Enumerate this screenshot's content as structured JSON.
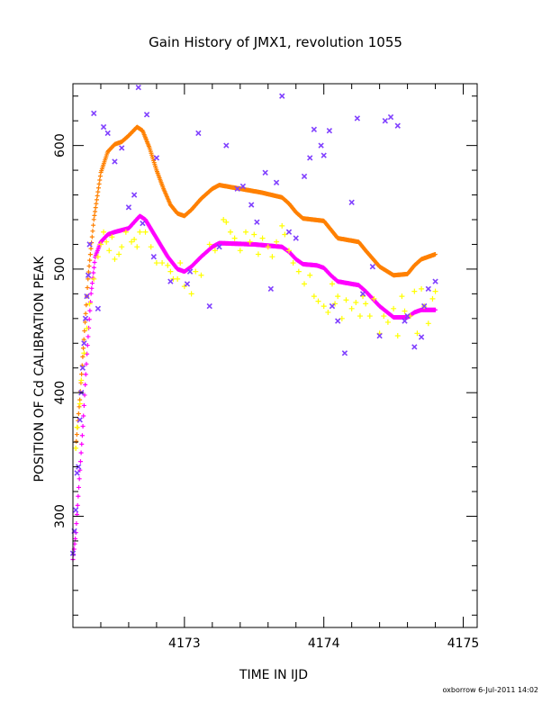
{
  "chart_data": {
    "type": "scatter",
    "title": "Gain History of JMX1, revolution 1055",
    "xlabel": "TIME IN IJD",
    "ylabel": "POSITION OF Cd CALIBRATION PEAK",
    "xlim": [
      4172.2,
      4175.1
    ],
    "ylim": [
      210,
      650
    ],
    "x_ticks": [
      4173,
      4174,
      4175
    ],
    "y_ticks": [
      300,
      400,
      500,
      600
    ],
    "grid": false,
    "footer": "oxborrow  6-Jul-2011 14:02",
    "series": [
      {
        "marker": "curve-plus",
        "color": "#ff8000",
        "knots": [
          [
            4172.22,
            355
          ],
          [
            4172.25,
            395
          ],
          [
            4172.28,
            445
          ],
          [
            4172.31,
            495
          ],
          [
            4172.35,
            540
          ],
          [
            4172.4,
            578
          ],
          [
            4172.45,
            595
          ],
          [
            4172.5,
            601
          ],
          [
            4172.55,
            603
          ],
          [
            4172.6,
            608
          ],
          [
            4172.66,
            615
          ],
          [
            4172.7,
            612
          ],
          [
            4172.75,
            598
          ],
          [
            4172.8,
            580
          ],
          [
            4172.85,
            565
          ],
          [
            4172.9,
            552
          ],
          [
            4172.95,
            545
          ],
          [
            4173.0,
            543
          ],
          [
            4173.05,
            548
          ],
          [
            4173.12,
            557
          ],
          [
            4173.2,
            565
          ],
          [
            4173.25,
            568
          ],
          [
            4173.4,
            565
          ],
          [
            4173.55,
            562
          ],
          [
            4173.7,
            558
          ],
          [
            4173.75,
            553
          ],
          [
            4173.8,
            546
          ],
          [
            4173.85,
            541
          ],
          [
            4174.0,
            539
          ],
          [
            4174.05,
            532
          ],
          [
            4174.1,
            525
          ],
          [
            4174.25,
            522
          ],
          [
            4174.3,
            515
          ],
          [
            4174.4,
            502
          ],
          [
            4174.5,
            495
          ],
          [
            4174.6,
            496
          ],
          [
            4174.65,
            503
          ],
          [
            4174.7,
            508
          ],
          [
            4174.75,
            510
          ],
          [
            4174.8,
            512
          ]
        ]
      },
      {
        "marker": "curve-plus",
        "color": "#ff00ff",
        "knots": [
          [
            4172.2,
            265
          ],
          [
            4172.22,
            285
          ],
          [
            4172.24,
            320
          ],
          [
            4172.27,
            370
          ],
          [
            4172.3,
            430
          ],
          [
            4172.33,
            480
          ],
          [
            4172.36,
            510
          ],
          [
            4172.4,
            522
          ],
          [
            4172.45,
            528
          ],
          [
            4172.5,
            530
          ],
          [
            4172.6,
            533
          ],
          [
            4172.68,
            543
          ],
          [
            4172.72,
            540
          ],
          [
            4172.8,
            525
          ],
          [
            4172.88,
            510
          ],
          [
            4172.95,
            500
          ],
          [
            4173.0,
            498
          ],
          [
            4173.05,
            502
          ],
          [
            4173.12,
            510
          ],
          [
            4173.2,
            518
          ],
          [
            4173.25,
            521
          ],
          [
            4173.5,
            520
          ],
          [
            4173.7,
            518
          ],
          [
            4173.75,
            514
          ],
          [
            4173.8,
            508
          ],
          [
            4173.85,
            504
          ],
          [
            4173.95,
            503
          ],
          [
            4174.0,
            501
          ],
          [
            4174.05,
            495
          ],
          [
            4174.1,
            490
          ],
          [
            4174.25,
            487
          ],
          [
            4174.3,
            482
          ],
          [
            4174.4,
            470
          ],
          [
            4174.5,
            461
          ],
          [
            4174.6,
            461
          ],
          [
            4174.65,
            465
          ],
          [
            4174.7,
            467
          ],
          [
            4174.8,
            467
          ]
        ]
      },
      {
        "marker": "plus",
        "color": "#ffff00",
        "points": [
          [
            4172.22,
            355
          ],
          [
            4172.23,
            372
          ],
          [
            4172.25,
            391
          ],
          [
            4172.26,
            410
          ],
          [
            4172.28,
            432
          ],
          [
            4172.3,
            452
          ],
          [
            4172.32,
            472
          ],
          [
            4172.35,
            492
          ],
          [
            4172.38,
            510
          ],
          [
            4172.4,
            520
          ],
          [
            4172.42,
            530
          ],
          [
            4172.44,
            522
          ],
          [
            4172.46,
            515
          ],
          [
            4172.48,
            526
          ],
          [
            4172.5,
            508
          ],
          [
            4172.53,
            512
          ],
          [
            4172.55,
            518
          ],
          [
            4172.58,
            530
          ],
          [
            4172.62,
            522
          ],
          [
            4172.64,
            524
          ],
          [
            4172.66,
            518
          ],
          [
            4172.68,
            530
          ],
          [
            4172.72,
            530
          ],
          [
            4172.76,
            518
          ],
          [
            4172.8,
            505
          ],
          [
            4172.84,
            505
          ],
          [
            4172.88,
            503
          ],
          [
            4172.9,
            498
          ],
          [
            4172.92,
            492
          ],
          [
            4172.95,
            492
          ],
          [
            4172.97,
            505
          ],
          [
            4173.0,
            486
          ],
          [
            4173.05,
            480
          ],
          [
            4173.08,
            498
          ],
          [
            4173.12,
            495
          ],
          [
            4173.18,
            520
          ],
          [
            4173.22,
            515
          ],
          [
            4173.28,
            540
          ],
          [
            4173.3,
            538
          ],
          [
            4173.33,
            530
          ],
          [
            4173.36,
            525
          ],
          [
            4173.4,
            515
          ],
          [
            4173.44,
            530
          ],
          [
            4173.47,
            522
          ],
          [
            4173.5,
            528
          ],
          [
            4173.53,
            512
          ],
          [
            4173.56,
            525
          ],
          [
            4173.6,
            518
          ],
          [
            4173.63,
            510
          ],
          [
            4173.66,
            522
          ],
          [
            4173.7,
            535
          ],
          [
            4173.72,
            528
          ],
          [
            4173.75,
            515
          ],
          [
            4173.78,
            505
          ],
          [
            4173.82,
            498
          ],
          [
            4173.86,
            488
          ],
          [
            4173.9,
            495
          ],
          [
            4173.93,
            478
          ],
          [
            4173.96,
            474
          ],
          [
            4174.0,
            470
          ],
          [
            4174.03,
            465
          ],
          [
            4174.06,
            488
          ],
          [
            4174.08,
            472
          ],
          [
            4174.1,
            478
          ],
          [
            4174.13,
            460
          ],
          [
            4174.16,
            475
          ],
          [
            4174.2,
            468
          ],
          [
            4174.23,
            473
          ],
          [
            4174.26,
            462
          ],
          [
            4174.28,
            478
          ],
          [
            4174.3,
            472
          ],
          [
            4174.33,
            462
          ],
          [
            4174.36,
            476
          ],
          [
            4174.4,
            448
          ],
          [
            4174.43,
            462
          ],
          [
            4174.46,
            457
          ],
          [
            4174.5,
            468
          ],
          [
            4174.53,
            446
          ],
          [
            4174.56,
            478
          ],
          [
            4174.58,
            466
          ],
          [
            4174.62,
            462
          ],
          [
            4174.65,
            482
          ],
          [
            4174.67,
            448
          ],
          [
            4174.7,
            484
          ],
          [
            4174.72,
            470
          ],
          [
            4174.75,
            456
          ],
          [
            4174.78,
            476
          ],
          [
            4174.8,
            482
          ]
        ]
      },
      {
        "marker": "x",
        "color": "#8040ff",
        "points": [
          [
            4172.2,
            270
          ],
          [
            4172.21,
            288
          ],
          [
            4172.22,
            305
          ],
          [
            4172.23,
            335
          ],
          [
            4172.24,
            340
          ],
          [
            4172.25,
            378
          ],
          [
            4172.26,
            400
          ],
          [
            4172.27,
            420
          ],
          [
            4172.28,
            440
          ],
          [
            4172.29,
            460
          ],
          [
            4172.3,
            478
          ],
          [
            4172.31,
            495
          ],
          [
            4172.32,
            520
          ],
          [
            4172.35,
            626
          ],
          [
            4172.38,
            468
          ],
          [
            4172.42,
            615
          ],
          [
            4172.45,
            610
          ],
          [
            4172.5,
            587
          ],
          [
            4172.55,
            598
          ],
          [
            4172.6,
            550
          ],
          [
            4172.64,
            560
          ],
          [
            4172.67,
            647
          ],
          [
            4172.7,
            537
          ],
          [
            4172.73,
            625
          ],
          [
            4172.78,
            510
          ],
          [
            4172.8,
            590
          ],
          [
            4172.9,
            490
          ],
          [
            4173.02,
            488
          ],
          [
            4173.04,
            498
          ],
          [
            4173.1,
            610
          ],
          [
            4173.18,
            470
          ],
          [
            4173.25,
            518
          ],
          [
            4173.3,
            600
          ],
          [
            4173.38,
            565
          ],
          [
            4173.42,
            567
          ],
          [
            4173.48,
            552
          ],
          [
            4173.52,
            538
          ],
          [
            4173.58,
            578
          ],
          [
            4173.62,
            484
          ],
          [
            4173.66,
            570
          ],
          [
            4173.7,
            640
          ],
          [
            4173.75,
            530
          ],
          [
            4173.8,
            525
          ],
          [
            4173.86,
            575
          ],
          [
            4173.9,
            590
          ],
          [
            4173.93,
            613
          ],
          [
            4173.98,
            600
          ],
          [
            4174.0,
            592
          ],
          [
            4174.04,
            612
          ],
          [
            4174.06,
            470
          ],
          [
            4174.1,
            458
          ],
          [
            4174.15,
            432
          ],
          [
            4174.2,
            554
          ],
          [
            4174.24,
            622
          ],
          [
            4174.28,
            480
          ],
          [
            4174.35,
            502
          ],
          [
            4174.4,
            446
          ],
          [
            4174.44,
            620
          ],
          [
            4174.48,
            623
          ],
          [
            4174.53,
            616
          ],
          [
            4174.58,
            458
          ],
          [
            4174.6,
            462
          ],
          [
            4174.65,
            437
          ],
          [
            4174.7,
            445
          ],
          [
            4174.72,
            470
          ],
          [
            4174.75,
            484
          ],
          [
            4174.8,
            490
          ]
        ]
      }
    ]
  }
}
